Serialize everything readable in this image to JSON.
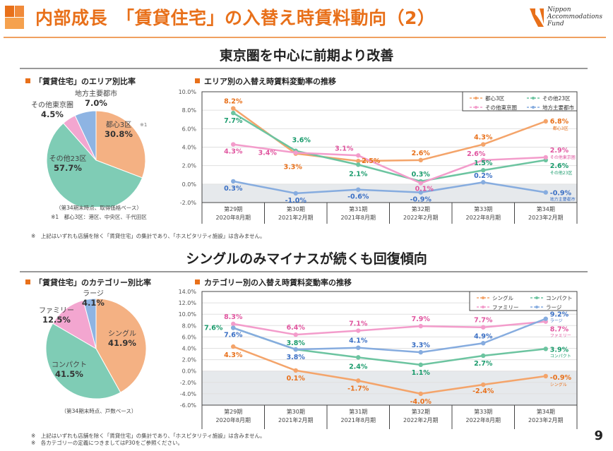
{
  "header": {
    "title": "内部成長　「賃貸住宅」の入替え時賃料動向（2）",
    "logo": {
      "line1": "Nippon",
      "line2": "Accommodations",
      "line3": "Fund"
    },
    "accent_color": "#e8701a"
  },
  "section1": {
    "title": "東京圏を中心に前期より改善",
    "pie_title": "「賃貸住宅」のエリア別比率",
    "line_title": "エリア別の入替え時賃料変動率の推移",
    "pie_note1": "（第34期末時点、取得価格ベース）",
    "pie_note2": "※1　都心3区：港区、中央区、千代田区",
    "footnote": "※　上記はいずれも店舗を除く「賃貸住宅」の集計であり、「ホスピタリティ施設」は含みません。"
  },
  "section2": {
    "title": "シングルのみマイナスが続くも回復傾向",
    "pie_title": "「賃貸住宅」のカテゴリー別比率",
    "line_title": "カテゴリー別の入替え時賃料変動率の推移",
    "pie_note1": "（第34期末時点、戸数ベース）",
    "footnote1": "※　上記はいずれも店舗を除く「賃貸住宅」の集計であり、「ホスピタリティ施設」は含みません。",
    "footnote2": "※　各カテゴリーの定義につきましてはP30をご参照ください。"
  },
  "page_number": "9",
  "chart_data": [
    {
      "type": "pie",
      "title": "「賃貸住宅」のエリア別比率",
      "slices": [
        {
          "label": "都心3区",
          "note": "※1",
          "value": 30.8,
          "display": "30.8%",
          "color": "#f4b183"
        },
        {
          "label": "その他23区",
          "value": 57.7,
          "display": "57.7%",
          "color": "#7fccb5"
        },
        {
          "label": "その他東京圏",
          "value": 4.5,
          "display": "4.5%",
          "color": "#f3a6d0"
        },
        {
          "label": "地方主要都市",
          "value": 7.0,
          "display": "7.0%",
          "color": "#8eb4e3"
        }
      ]
    },
    {
      "type": "line",
      "title": "エリア別の入替え時賃料変動率の推移",
      "categories": [
        [
          "第29期",
          "2020年8月期"
        ],
        [
          "第30期",
          "2021年2月期"
        ],
        [
          "第31期",
          "2021年8月期"
        ],
        [
          "第32期",
          "2022年2月期"
        ],
        [
          "第33期",
          "2022年8月期"
        ],
        [
          "第34期",
          "2023年2月期"
        ]
      ],
      "ylim": [
        -2,
        10
      ],
      "yticks": [
        "10.0%",
        "8.0%",
        "6.0%",
        "4.0%",
        "2.0%",
        "0.0%",
        "-2.0%"
      ],
      "ytick_values": [
        10,
        8,
        6,
        4,
        2,
        0,
        -2
      ],
      "negative_shade": true,
      "grid": true,
      "legend_position": "top-right",
      "series": [
        {
          "name": "都心3区",
          "values": [
            8.2,
            3.3,
            2.5,
            2.6,
            4.3,
            6.8
          ],
          "labels": [
            "8.2%",
            "3.3%",
            "2.5%",
            "2.6%",
            "4.3%",
            "6.8%"
          ],
          "color": "#f4a46a",
          "label_color": "#e8701a"
        },
        {
          "name": "その他23区",
          "values": [
            7.7,
            3.6,
            2.1,
            0.3,
            1.5,
            2.6
          ],
          "labels": [
            "7.7%",
            "3.6%",
            "2.1%",
            "0.3%",
            "1.5%",
            "2.6%"
          ],
          "color": "#6cc4a0",
          "label_color": "#1a9b6c"
        },
        {
          "name": "その他東京圏",
          "values": [
            4.3,
            3.4,
            3.1,
            0.1,
            2.6,
            2.9
          ],
          "labels": [
            "4.3%",
            "3.4%",
            "3.1%",
            "0.1%",
            "2.6%",
            "2.9%"
          ],
          "color": "#f39ccb",
          "label_color": "#e0559f"
        },
        {
          "name": "地方主要都市",
          "values": [
            0.3,
            -1.0,
            -0.6,
            -0.9,
            0.2,
            -0.9
          ],
          "labels": [
            "0.3%",
            "-1.0%",
            "-0.6%",
            "-0.9%",
            "0.2%",
            "-0.9%"
          ],
          "color": "#86acdf",
          "label_color": "#3a6fc4"
        }
      ]
    },
    {
      "type": "pie",
      "title": "「賃貸住宅」のカテゴリー別比率",
      "slices": [
        {
          "label": "シングル",
          "value": 41.9,
          "display": "41.9%",
          "color": "#f4b183"
        },
        {
          "label": "コンパクト",
          "value": 41.5,
          "display": "41.5%",
          "color": "#7fccb5"
        },
        {
          "label": "ファミリー",
          "value": 12.5,
          "display": "12.5%",
          "color": "#f3a6d0"
        },
        {
          "label": "ラージ",
          "value": 4.1,
          "display": "4.1%",
          "color": "#8eb4e3"
        }
      ]
    },
    {
      "type": "line",
      "title": "カテゴリー別の入替え時賃料変動率の推移",
      "categories": [
        [
          "第29期",
          "2020年8月期"
        ],
        [
          "第30期",
          "2021年2月期"
        ],
        [
          "第31期",
          "2021年8月期"
        ],
        [
          "第32期",
          "2022年2月期"
        ],
        [
          "第33期",
          "2022年8月期"
        ],
        [
          "第34期",
          "2023年2月期"
        ]
      ],
      "ylim": [
        -6,
        14
      ],
      "yticks": [
        "14.0%",
        "12.0%",
        "10.0%",
        "8.0%",
        "6.0%",
        "4.0%",
        "2.0%",
        "0.0%",
        "-2.0%",
        "-4.0%",
        "-6.0%"
      ],
      "ytick_values": [
        14,
        12,
        10,
        8,
        6,
        4,
        2,
        0,
        -2,
        -4,
        -6
      ],
      "negative_shade": true,
      "grid": true,
      "legend_position": "top-right",
      "series": [
        {
          "name": "シングル",
          "values": [
            4.3,
            0.1,
            -1.7,
            -4.0,
            -2.4,
            -0.9
          ],
          "labels": [
            "4.3%",
            "0.1%",
            "-1.7%",
            "-4.0%",
            "-2.4%",
            "-0.9%"
          ],
          "color": "#f4a46a",
          "label_color": "#e8701a"
        },
        {
          "name": "コンパクト",
          "values": [
            7.6,
            3.8,
            2.4,
            1.1,
            2.7,
            3.9
          ],
          "labels": [
            "7.6%",
            "3.8%",
            "2.4%",
            "1.1%",
            "2.7%",
            "3.9%"
          ],
          "color": "#6cc4a0",
          "label_color": "#1a9b6c"
        },
        {
          "name": "ファミリー",
          "values": [
            8.3,
            6.4,
            7.1,
            7.9,
            7.7,
            8.7
          ],
          "labels": [
            "8.3%",
            "6.4%",
            "7.1%",
            "7.9%",
            "7.7%",
            "8.7%"
          ],
          "color": "#f39ccb",
          "label_color": "#e0559f"
        },
        {
          "name": "ラージ",
          "values": [
            7.6,
            3.8,
            4.1,
            3.3,
            4.9,
            9.2
          ],
          "labels": [
            "7.6%",
            "3.8%",
            "4.1%",
            "3.3%",
            "4.9%",
            "9.2%"
          ],
          "color": "#86acdf",
          "label_color": "#3a6fc4"
        }
      ]
    }
  ]
}
